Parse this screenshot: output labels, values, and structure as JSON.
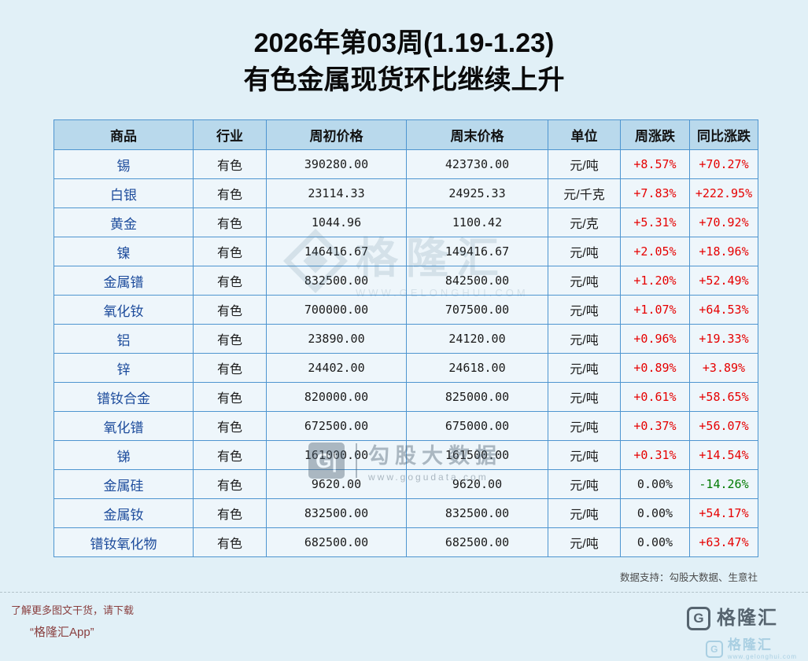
{
  "title": {
    "line1": "2026年第03周(1.19-1.23)",
    "line2": "有色金属现货环比继续上升"
  },
  "chart_data": {
    "type": "table",
    "title": "2026年第03周(1.19-1.23) 有色金属现货环比继续上升",
    "columns": [
      "商品",
      "行业",
      "周初价格",
      "周末价格",
      "单位",
      "周涨跌",
      "同比涨跌"
    ],
    "rows": [
      [
        "锡",
        "有色",
        "390280.00",
        "423730.00",
        "元/吨",
        "+8.57%",
        "+70.27%"
      ],
      [
        "白银",
        "有色",
        "23114.33",
        "24925.33",
        "元/千克",
        "+7.83%",
        "+222.95%"
      ],
      [
        "黄金",
        "有色",
        "1044.96",
        "1100.42",
        "元/克",
        "+5.31%",
        "+70.92%"
      ],
      [
        "镍",
        "有色",
        "146416.67",
        "149416.67",
        "元/吨",
        "+2.05%",
        "+18.96%"
      ],
      [
        "金属镨",
        "有色",
        "832500.00",
        "842500.00",
        "元/吨",
        "+1.20%",
        "+52.49%"
      ],
      [
        "氧化钕",
        "有色",
        "700000.00",
        "707500.00",
        "元/吨",
        "+1.07%",
        "+64.53%"
      ],
      [
        "铝",
        "有色",
        "23890.00",
        "24120.00",
        "元/吨",
        "+0.96%",
        "+19.33%"
      ],
      [
        "锌",
        "有色",
        "24402.00",
        "24618.00",
        "元/吨",
        "+0.89%",
        "+3.89%"
      ],
      [
        "镨钕合金",
        "有色",
        "820000.00",
        "825000.00",
        "元/吨",
        "+0.61%",
        "+58.65%"
      ],
      [
        "氧化镨",
        "有色",
        "672500.00",
        "675000.00",
        "元/吨",
        "+0.37%",
        "+56.07%"
      ],
      [
        "锑",
        "有色",
        "161000.00",
        "161500.00",
        "元/吨",
        "+0.31%",
        "+14.54%"
      ],
      [
        "金属硅",
        "有色",
        "9620.00",
        "9620.00",
        "元/吨",
        "0.00%",
        "-14.26%"
      ],
      [
        "金属钕",
        "有色",
        "832500.00",
        "832500.00",
        "元/吨",
        "0.00%",
        "+54.17%"
      ],
      [
        "镨钕氧化物",
        "有色",
        "682500.00",
        "682500.00",
        "元/吨",
        "0.00%",
        "+63.47%"
      ]
    ]
  },
  "watermarks": {
    "center_brand": "格隆汇",
    "center_sub": "WWW.GELONGHUI.COM",
    "gougu_icon": "G|",
    "gougu_name": "勾股大数据",
    "gougu_url": "www.gogudata.com"
  },
  "footer": {
    "data_support": "数据支持：勾股大数据、生意社",
    "promo_line1": "了解更多图文干货，请下载",
    "promo_line2": "“格隆汇App”",
    "brand_icon": "G",
    "brand": "格隆汇",
    "brand_url": "www.gelonghui.com"
  },
  "colors": {
    "up": "#e60000",
    "down": "#007a00",
    "commodity_text": "#1b4a9b",
    "header_bg": "#b9d9ec",
    "table_border": "#4e95d0",
    "page_bg": "#e1f0f7"
  }
}
